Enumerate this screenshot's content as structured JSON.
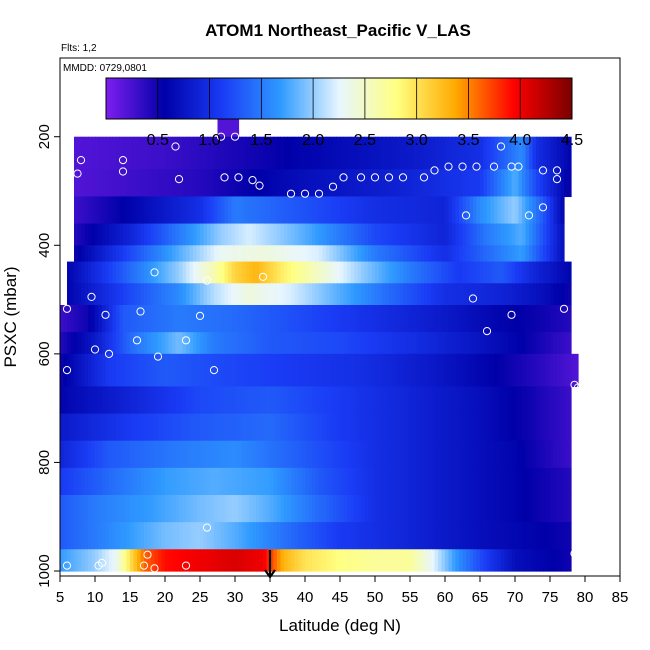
{
  "chart_data": {
    "type": "heatmap",
    "title": "ATOM1 Northeast_Pacific V_LAS",
    "flights_note": "Flts: 1,2",
    "date_note": "MMDD: 0729,0801",
    "xlabel": "Latitude (deg N)",
    "ylabel": "PSXC (mbar)",
    "xlim": [
      5,
      85
    ],
    "ylim": [
      1000,
      55
    ],
    "y_reversed": true,
    "xticks": [
      5,
      10,
      15,
      20,
      25,
      30,
      35,
      40,
      45,
      50,
      55,
      60,
      65,
      70,
      75,
      80,
      85
    ],
    "yticks": [
      200,
      400,
      600,
      800,
      1000
    ],
    "colorbar": {
      "range": [
        0,
        4.5
      ],
      "ticks": [
        0.5,
        1.0,
        1.5,
        2.0,
        2.5,
        3.0,
        3.5,
        4.0,
        4.5
      ],
      "tick_labels": [
        "0.5",
        "1.0",
        "1.5",
        "2.0",
        "2.5",
        "3.0",
        "3.5",
        "4.0",
        "4.5"
      ],
      "colors": [
        "#7f1ff0",
        "#0000a8",
        "#1a3cf5",
        "#2f9aff",
        "#e8f6ff",
        "#ffff80",
        "#ffaa00",
        "#ff0000",
        "#7a0000"
      ]
    },
    "arrow_marker": {
      "latitude": 35,
      "pressure": 1000
    },
    "layers": [
      {
        "p_top": 160,
        "p_bot": 200,
        "lat_min": 27.5,
        "lat_max": 30.5,
        "values": [
          [
            27.5,
            0.2
          ],
          [
            30.5,
            0.2
          ]
        ]
      },
      {
        "p_top": 200,
        "p_bot": 260,
        "lat_min": 7,
        "lat_max": 78,
        "values": [
          [
            7,
            0.2
          ],
          [
            20,
            0.3
          ],
          [
            40,
            0.6
          ],
          [
            55,
            0.8
          ],
          [
            65,
            1.0
          ],
          [
            68,
            1.3
          ],
          [
            71,
            1.6
          ],
          [
            73,
            1.0
          ],
          [
            78,
            0.6
          ]
        ]
      },
      {
        "p_top": 260,
        "p_bot": 310,
        "lat_min": 7,
        "lat_max": 78,
        "values": [
          [
            7,
            0.2
          ],
          [
            25,
            0.4
          ],
          [
            40,
            0.7
          ],
          [
            55,
            0.9
          ],
          [
            65,
            1.1
          ],
          [
            70,
            1.8
          ],
          [
            73,
            1.2
          ],
          [
            78,
            0.5
          ]
        ]
      },
      {
        "p_top": 310,
        "p_bot": 360,
        "lat_min": 7,
        "lat_max": 77,
        "values": [
          [
            7,
            0.3
          ],
          [
            15,
            0.6
          ],
          [
            25,
            1.0
          ],
          [
            30,
            1.5
          ],
          [
            38,
            1.3
          ],
          [
            50,
            1.0
          ],
          [
            60,
            0.9
          ],
          [
            65,
            1.6
          ],
          [
            70,
            2.0
          ],
          [
            74,
            1.3
          ],
          [
            77,
            0.6
          ]
        ]
      },
      {
        "p_top": 360,
        "p_bot": 400,
        "lat_min": 7,
        "lat_max": 77,
        "values": [
          [
            7,
            0.4
          ],
          [
            15,
            0.9
          ],
          [
            22,
            1.5
          ],
          [
            28,
            2.0
          ],
          [
            32,
            2.2
          ],
          [
            40,
            1.8
          ],
          [
            50,
            1.2
          ],
          [
            60,
            0.9
          ],
          [
            66,
            1.5
          ],
          [
            71,
            1.8
          ],
          [
            77,
            0.7
          ]
        ]
      },
      {
        "p_top": 400,
        "p_bot": 430,
        "lat_min": 7,
        "lat_max": 77,
        "values": [
          [
            7,
            0.5
          ],
          [
            15,
            1.2
          ],
          [
            22,
            1.8
          ],
          [
            28,
            2.3
          ],
          [
            34,
            2.4
          ],
          [
            42,
            2.2
          ],
          [
            50,
            1.5
          ],
          [
            60,
            1.0
          ],
          [
            66,
            1.4
          ],
          [
            71,
            1.7
          ],
          [
            77,
            0.7
          ]
        ]
      },
      {
        "p_top": 430,
        "p_bot": 470,
        "lat_min": 6,
        "lat_max": 78,
        "values": [
          [
            6,
            0.6
          ],
          [
            15,
            1.4
          ],
          [
            22,
            2.0
          ],
          [
            27,
            2.6
          ],
          [
            30,
            3.1
          ],
          [
            33,
            3.3
          ],
          [
            37,
            2.9
          ],
          [
            42,
            2.5
          ],
          [
            48,
            2.0
          ],
          [
            55,
            1.5
          ],
          [
            62,
            1.1
          ],
          [
            68,
            1.3
          ],
          [
            73,
            0.9
          ],
          [
            78,
            0.6
          ]
        ]
      },
      {
        "p_top": 470,
        "p_bot": 510,
        "lat_min": 6,
        "lat_max": 78,
        "values": [
          [
            6,
            0.6
          ],
          [
            15,
            1.2
          ],
          [
            22,
            1.6
          ],
          [
            27,
            2.1
          ],
          [
            32,
            2.4
          ],
          [
            38,
            2.2
          ],
          [
            45,
            1.8
          ],
          [
            52,
            1.4
          ],
          [
            60,
            1.0
          ],
          [
            68,
            0.9
          ],
          [
            74,
            0.7
          ],
          [
            78,
            0.5
          ]
        ]
      },
      {
        "p_top": 510,
        "p_bot": 560,
        "lat_min": 5,
        "lat_max": 78,
        "values": [
          [
            5,
            0.3
          ],
          [
            9,
            0.5
          ],
          [
            14,
            1.3
          ],
          [
            22,
            1.5
          ],
          [
            30,
            1.4
          ],
          [
            40,
            1.2
          ],
          [
            50,
            1.0
          ],
          [
            60,
            0.8
          ],
          [
            68,
            0.6
          ],
          [
            74,
            0.5
          ],
          [
            78,
            0.4
          ]
        ]
      },
      {
        "p_top": 560,
        "p_bot": 600,
        "lat_min": 5,
        "lat_max": 78,
        "values": [
          [
            5,
            0.4
          ],
          [
            10,
            0.8
          ],
          [
            15,
            1.4
          ],
          [
            22,
            1.9
          ],
          [
            27,
            1.5
          ],
          [
            35,
            1.3
          ],
          [
            45,
            1.2
          ],
          [
            55,
            1.0
          ],
          [
            63,
            0.8
          ],
          [
            70,
            0.6
          ],
          [
            78,
            0.3
          ]
        ]
      },
      {
        "p_top": 600,
        "p_bot": 660,
        "lat_min": 5,
        "lat_max": 79,
        "values": [
          [
            5,
            0.5
          ],
          [
            12,
            1.1
          ],
          [
            20,
            1.3
          ],
          [
            28,
            1.2
          ],
          [
            38,
            1.1
          ],
          [
            48,
            1.0
          ],
          [
            58,
            0.8
          ],
          [
            66,
            0.6
          ],
          [
            73,
            0.4
          ],
          [
            79,
            0.2
          ]
        ]
      },
      {
        "p_top": 660,
        "p_bot": 710,
        "lat_min": 5,
        "lat_max": 78,
        "values": [
          [
            5,
            0.6
          ],
          [
            15,
            0.9
          ],
          [
            25,
            1.2
          ],
          [
            35,
            1.3
          ],
          [
            45,
            1.1
          ],
          [
            55,
            0.9
          ],
          [
            65,
            0.7
          ],
          [
            72,
            0.5
          ],
          [
            78,
            0.3
          ]
        ]
      },
      {
        "p_top": 710,
        "p_bot": 760,
        "lat_min": 5,
        "lat_max": 78,
        "values": [
          [
            5,
            0.8
          ],
          [
            15,
            1.1
          ],
          [
            25,
            1.3
          ],
          [
            35,
            1.4
          ],
          [
            45,
            1.1
          ],
          [
            55,
            0.9
          ],
          [
            65,
            0.7
          ],
          [
            72,
            0.5
          ],
          [
            78,
            0.3
          ]
        ]
      },
      {
        "p_top": 760,
        "p_bot": 810,
        "lat_min": 5,
        "lat_max": 78,
        "values": [
          [
            5,
            0.9
          ],
          [
            12,
            1.3
          ],
          [
            22,
            1.5
          ],
          [
            30,
            1.6
          ],
          [
            40,
            1.3
          ],
          [
            50,
            1.0
          ],
          [
            60,
            0.8
          ],
          [
            70,
            0.6
          ],
          [
            78,
            0.3
          ]
        ]
      },
      {
        "p_top": 810,
        "p_bot": 860,
        "lat_min": 5,
        "lat_max": 78,
        "values": [
          [
            5,
            1.1
          ],
          [
            12,
            1.4
          ],
          [
            20,
            1.7
          ],
          [
            27,
            1.8
          ],
          [
            35,
            1.7
          ],
          [
            42,
            1.3
          ],
          [
            50,
            1.0
          ],
          [
            60,
            0.8
          ],
          [
            70,
            0.6
          ],
          [
            78,
            0.4
          ]
        ]
      },
      {
        "p_top": 860,
        "p_bot": 910,
        "lat_min": 5,
        "lat_max": 78,
        "values": [
          [
            5,
            1.3
          ],
          [
            10,
            1.5
          ],
          [
            18,
            1.7
          ],
          [
            25,
            1.9
          ],
          [
            30,
            2.0
          ],
          [
            35,
            1.8
          ],
          [
            42,
            1.4
          ],
          [
            50,
            1.0
          ],
          [
            60,
            0.8
          ],
          [
            70,
            0.6
          ],
          [
            78,
            0.4
          ]
        ]
      },
      {
        "p_top": 910,
        "p_bot": 960,
        "lat_min": 5,
        "lat_max": 78,
        "values": [
          [
            5,
            1.3
          ],
          [
            10,
            1.5
          ],
          [
            15,
            1.7
          ],
          [
            20,
            1.9
          ],
          [
            25,
            2.0
          ],
          [
            30,
            1.8
          ],
          [
            38,
            1.4
          ],
          [
            45,
            1.1
          ],
          [
            55,
            0.9
          ],
          [
            65,
            0.7
          ],
          [
            72,
            0.6
          ],
          [
            78,
            0.5
          ]
        ]
      },
      {
        "p_top": 960,
        "p_bot": 1000,
        "lat_min": 5,
        "lat_max": 78,
        "values": [
          [
            5,
            1.7
          ],
          [
            10,
            2.0
          ],
          [
            13,
            2.3
          ],
          [
            15,
            3.0
          ],
          [
            17,
            3.6
          ],
          [
            20,
            3.9
          ],
          [
            25,
            4.0
          ],
          [
            30,
            4.1
          ],
          [
            34,
            4.0
          ],
          [
            37,
            3.3
          ],
          [
            40,
            3.0
          ],
          [
            45,
            2.8
          ],
          [
            50,
            2.7
          ],
          [
            55,
            2.7
          ],
          [
            58,
            2.3
          ],
          [
            62,
            1.6
          ],
          [
            66,
            1.1
          ],
          [
            70,
            0.7
          ],
          [
            74,
            0.6
          ],
          [
            78,
            0.5
          ]
        ]
      }
    ],
    "samples": [
      {
        "lat": 28,
        "p": 200
      },
      {
        "lat": 30,
        "p": 200
      },
      {
        "lat": 21.5,
        "p": 218
      },
      {
        "lat": 68,
        "p": 218
      },
      {
        "lat": 8,
        "p": 243
      },
      {
        "lat": 14,
        "p": 243
      },
      {
        "lat": 7.5,
        "p": 268
      },
      {
        "lat": 14,
        "p": 264
      },
      {
        "lat": 60.5,
        "p": 255
      },
      {
        "lat": 62.5,
        "p": 255
      },
      {
        "lat": 64.5,
        "p": 255
      },
      {
        "lat": 67,
        "p": 255
      },
      {
        "lat": 69.5,
        "p": 255
      },
      {
        "lat": 70.5,
        "p": 255
      },
      {
        "lat": 74,
        "p": 262
      },
      {
        "lat": 76,
        "p": 262
      },
      {
        "lat": 22,
        "p": 278
      },
      {
        "lat": 28.5,
        "p": 275
      },
      {
        "lat": 30.5,
        "p": 275
      },
      {
        "lat": 32.5,
        "p": 280
      },
      {
        "lat": 33.5,
        "p": 290
      },
      {
        "lat": 38,
        "p": 305
      },
      {
        "lat": 40,
        "p": 305
      },
      {
        "lat": 42,
        "p": 305
      },
      {
        "lat": 44,
        "p": 292
      },
      {
        "lat": 45.5,
        "p": 275
      },
      {
        "lat": 48,
        "p": 275
      },
      {
        "lat": 50,
        "p": 275
      },
      {
        "lat": 52,
        "p": 275
      },
      {
        "lat": 54,
        "p": 275
      },
      {
        "lat": 57,
        "p": 275
      },
      {
        "lat": 58.5,
        "p": 262
      },
      {
        "lat": 76,
        "p": 278
      },
      {
        "lat": 74,
        "p": 330
      },
      {
        "lat": 72,
        "p": 345
      },
      {
        "lat": 63,
        "p": 345
      },
      {
        "lat": 18.5,
        "p": 450
      },
      {
        "lat": 26,
        "p": 465
      },
      {
        "lat": 34,
        "p": 458
      },
      {
        "lat": 9.5,
        "p": 495
      },
      {
        "lat": 64,
        "p": 498
      },
      {
        "lat": 6,
        "p": 517
      },
      {
        "lat": 11.5,
        "p": 528
      },
      {
        "lat": 16.5,
        "p": 522
      },
      {
        "lat": 25,
        "p": 530
      },
      {
        "lat": 69.5,
        "p": 528
      },
      {
        "lat": 77,
        "p": 517
      },
      {
        "lat": 66,
        "p": 558
      },
      {
        "lat": 16,
        "p": 575
      },
      {
        "lat": 23,
        "p": 575
      },
      {
        "lat": 10,
        "p": 592
      },
      {
        "lat": 12,
        "p": 600
      },
      {
        "lat": 19,
        "p": 605
      },
      {
        "lat": 6,
        "p": 630
      },
      {
        "lat": 27,
        "p": 630
      },
      {
        "lat": 78.5,
        "p": 657
      },
      {
        "lat": 79,
        "p": 662
      },
      {
        "lat": 26,
        "p": 920
      },
      {
        "lat": 78.5,
        "p": 968
      },
      {
        "lat": 17.5,
        "p": 970
      },
      {
        "lat": 6,
        "p": 990
      },
      {
        "lat": 10.5,
        "p": 990
      },
      {
        "lat": 11,
        "p": 985
      },
      {
        "lat": 17,
        "p": 990
      },
      {
        "lat": 18.5,
        "p": 995
      },
      {
        "lat": 23,
        "p": 990
      }
    ]
  }
}
